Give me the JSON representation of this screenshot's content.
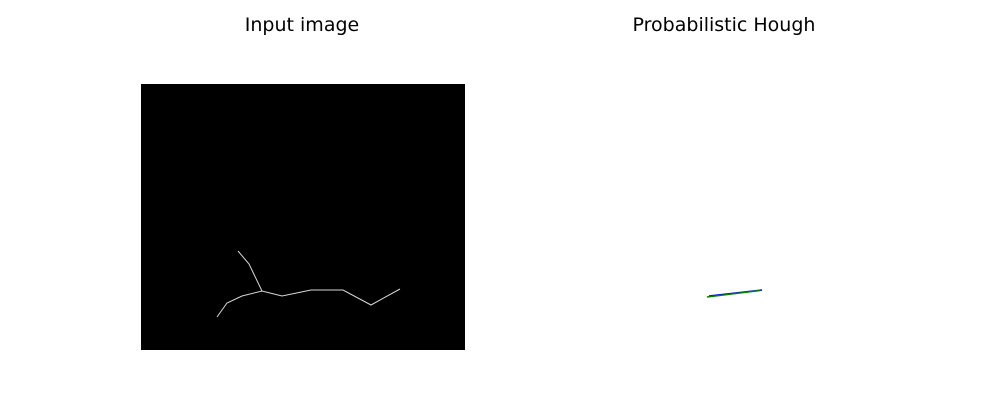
{
  "panels": {
    "left": {
      "title": "Input image",
      "background": "#000000",
      "edge_color": "#d8d8d8"
    },
    "right": {
      "title": "Probabilistic Hough",
      "background": "#ffffff",
      "detected_line_colors": [
        "#0000ff",
        "#008000"
      ]
    }
  }
}
